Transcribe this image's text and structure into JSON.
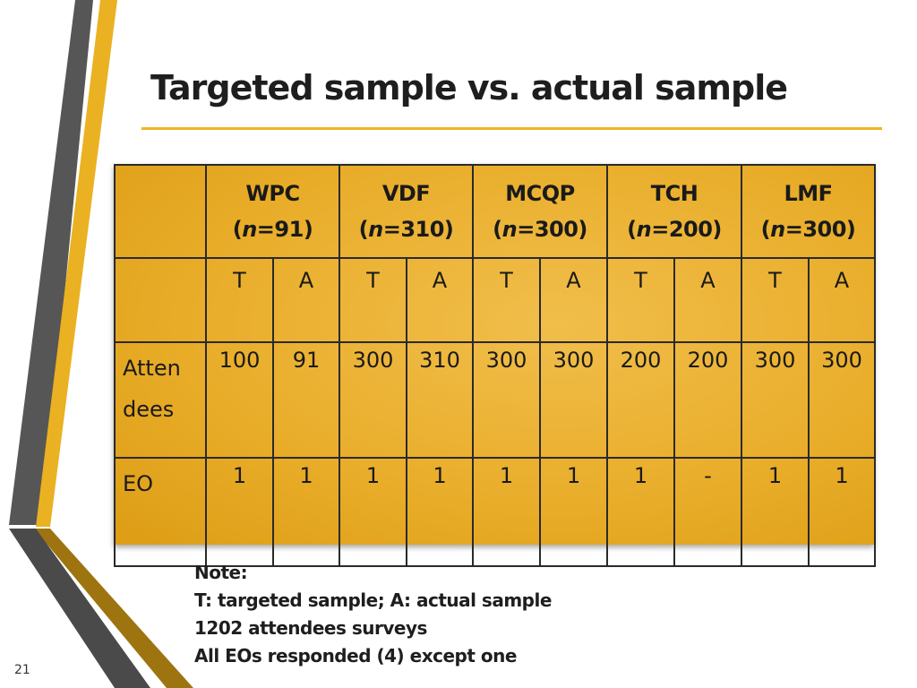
{
  "slide": {
    "title": "Targeted sample vs. actual sample",
    "page_number": "21",
    "accent_color": "#f0b323"
  },
  "table": {
    "groups": [
      {
        "name": "WPC",
        "n_label": "n",
        "n_value": "=91"
      },
      {
        "name": "VDF",
        "n_label": "n",
        "n_value": "=310"
      },
      {
        "name": "MCQP",
        "n_label": "n",
        "n_value": "=300"
      },
      {
        "name": "TCH",
        "n_label": "n",
        "n_value": "=200"
      },
      {
        "name": "LMF",
        "n_label": "n",
        "n_value": "=300"
      }
    ],
    "subheaders": [
      "T",
      "A",
      "T",
      "A",
      "T",
      "A",
      "T",
      "A",
      "T",
      "A"
    ],
    "rows": [
      {
        "label_line1": "Atten",
        "label_line2": "dees",
        "values": [
          "100",
          "91",
          "300",
          "310",
          "300",
          "300",
          "200",
          "200",
          "300",
          "300"
        ]
      },
      {
        "label_line1": "EO",
        "label_line2": "",
        "values": [
          "1",
          "1",
          "1",
          "1",
          "1",
          "1",
          "1",
          "-",
          "1",
          "1"
        ]
      }
    ]
  },
  "note": {
    "heading": "Note:",
    "lines": [
      "T: targeted sample; A: actual sample",
      "1202 attendees surveys",
      "All EOs responded (4) except one"
    ]
  }
}
